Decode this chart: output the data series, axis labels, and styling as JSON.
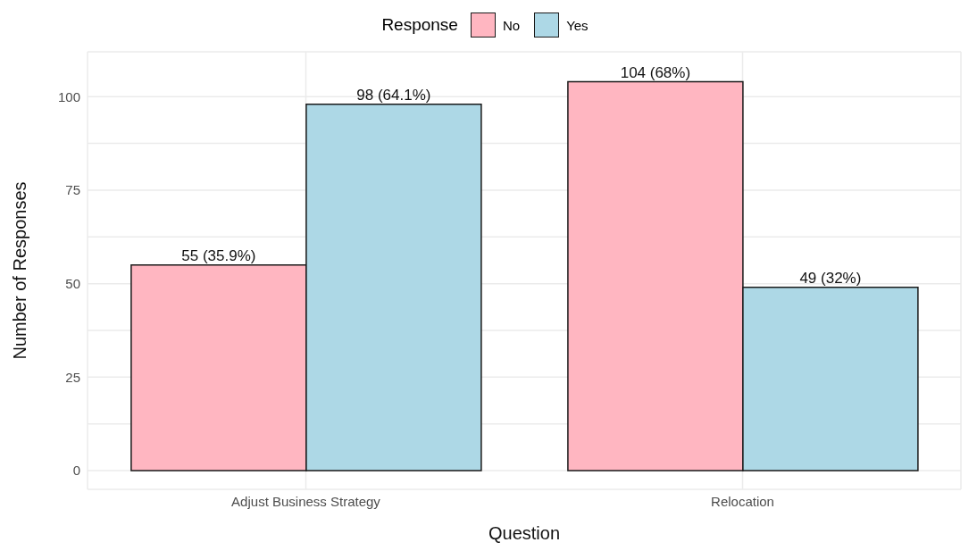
{
  "chart_data": {
    "type": "bar",
    "xlabel": "Question",
    "ylabel": "Number of Responses",
    "legend_title": "Response",
    "legend": "top",
    "grid": true,
    "categories": [
      "Adjust Business Strategy",
      "Relocation"
    ],
    "series": [
      {
        "name": "No",
        "color": "#ffb6c1",
        "values": [
          55,
          104
        ],
        "value_labels": [
          "55 (35.9%)",
          "104 (68%)"
        ]
      },
      {
        "name": "Yes",
        "color": "#add8e6",
        "values": [
          98,
          49
        ],
        "value_labels": [
          "98 (64.1%)",
          "49 (32%)"
        ]
      }
    ],
    "ylim": [
      -5,
      112
    ],
    "yticks": [
      0,
      {
        "value": 12.5,
        "label": null
      },
      25,
      {
        "value": 37.5,
        "label": null
      },
      50,
      {
        "value": 62.5,
        "label": null
      },
      75,
      {
        "value": 87.5,
        "label": null
      },
      100,
      {
        "value": 112,
        "label": null
      }
    ]
  }
}
